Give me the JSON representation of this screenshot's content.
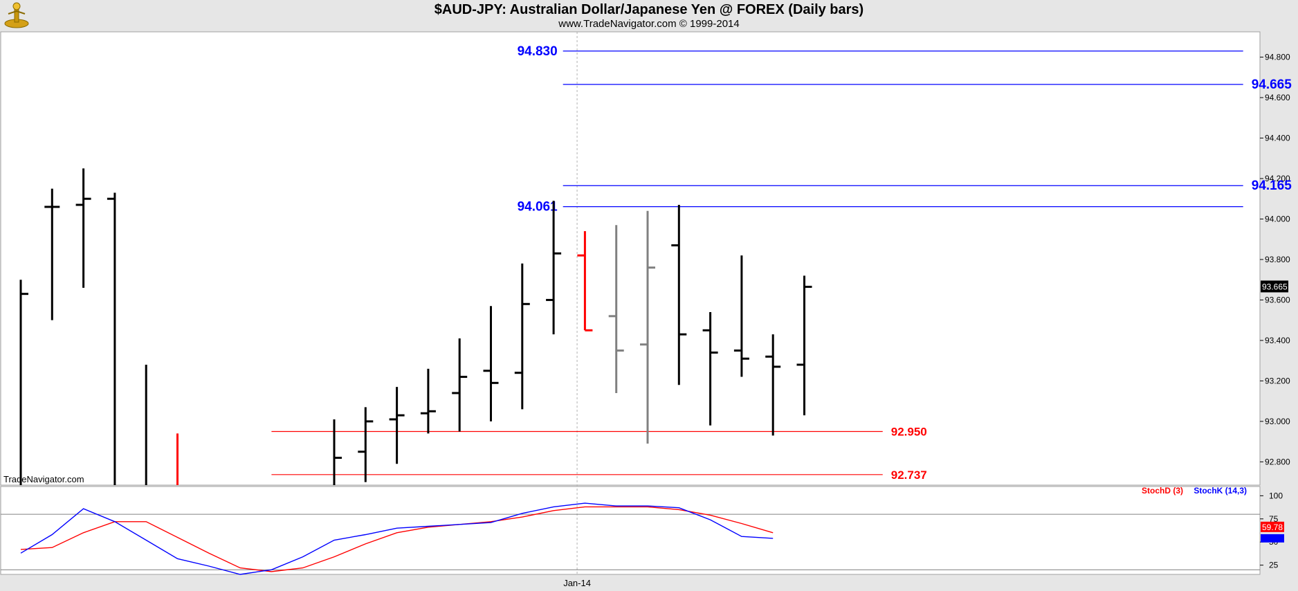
{
  "header": {
    "title": "$AUD-JPY:  Australian Dollar/Japanese Yen @ FOREX  (Daily bars)",
    "subtitle": "www.TradeNavigator.com © 1999-2014"
  },
  "watermark": "TradeNavigator.com",
  "last_price_label": "93.665",
  "colors": {
    "up_bar": "#000000",
    "down_bar": "#ff0000",
    "inside_bar": "#808080",
    "resistance": "#0000ff",
    "support": "#ff0000",
    "stoch_d": "#ff0000",
    "stoch_k": "#0000ff"
  },
  "chart_data": [
    {
      "type": "ohlc",
      "title": "$AUD-JPY:  Australian Dollar/Japanese Yen @ FOREX  (Daily bars)",
      "y_ticks": [
        "92.800",
        "93.000",
        "93.200",
        "93.400",
        "93.600",
        "93.800",
        "94.000",
        "94.200",
        "94.400",
        "94.600",
        "94.800"
      ],
      "ylim": [
        92.685,
        94.925
      ],
      "x_ticks": [
        {
          "label": "Jan-14",
          "index": 17.75
        }
      ],
      "bars": [
        {
          "o": null,
          "h": 93.7,
          "l": 92.6,
          "c": 93.63,
          "color": "up_bar"
        },
        {
          "o": 94.06,
          "h": 94.15,
          "l": 93.5,
          "c": 94.06,
          "color": "up_bar"
        },
        {
          "o": 94.07,
          "h": 94.25,
          "l": 93.66,
          "c": 94.1,
          "color": "up_bar"
        },
        {
          "o": 94.1,
          "h": 94.13,
          "l": 92.6,
          "c": null,
          "color": "up_bar"
        },
        {
          "o": null,
          "h": 93.28,
          "l": 92.6,
          "c": null,
          "color": "up_bar"
        },
        {
          "o": null,
          "h": 92.94,
          "l": 92.6,
          "c": null,
          "color": "down_bar"
        },
        null,
        null,
        null,
        null,
        {
          "o": null,
          "h": 93.01,
          "l": 92.6,
          "c": 92.82,
          "color": "up_bar"
        },
        {
          "o": 92.85,
          "h": 93.07,
          "l": 92.7,
          "c": 93.0,
          "color": "up_bar"
        },
        {
          "o": 93.01,
          "h": 93.17,
          "l": 92.79,
          "c": 93.03,
          "color": "up_bar"
        },
        {
          "o": 93.04,
          "h": 93.26,
          "l": 92.94,
          "c": 93.05,
          "color": "up_bar"
        },
        {
          "o": 93.14,
          "h": 93.41,
          "l": 92.95,
          "c": 93.22,
          "color": "up_bar"
        },
        {
          "o": 93.25,
          "h": 93.57,
          "l": 93.0,
          "c": 93.19,
          "color": "up_bar"
        },
        {
          "o": 93.24,
          "h": 93.78,
          "l": 93.06,
          "c": 93.58,
          "color": "up_bar"
        },
        {
          "o": 93.6,
          "h": 94.09,
          "l": 93.43,
          "c": 93.83,
          "color": "up_bar"
        },
        {
          "o": 93.82,
          "h": 93.94,
          "l": 93.45,
          "c": 93.45,
          "color": "down_bar"
        },
        {
          "o": 93.52,
          "h": 93.97,
          "l": 93.14,
          "c": 93.35,
          "color": "inside_bar"
        },
        {
          "o": 93.38,
          "h": 94.04,
          "l": 92.89,
          "c": 93.76,
          "color": "inside_bar"
        },
        {
          "o": 93.87,
          "h": 94.07,
          "l": 93.18,
          "c": 93.43,
          "color": "up_bar"
        },
        {
          "o": 93.45,
          "h": 93.54,
          "l": 92.98,
          "c": 93.34,
          "color": "up_bar"
        },
        {
          "o": 93.35,
          "h": 93.82,
          "l": 93.22,
          "c": 93.31,
          "color": "up_bar"
        },
        {
          "o": 93.32,
          "h": 93.43,
          "l": 92.93,
          "c": 93.27,
          "color": "up_bar"
        },
        {
          "o": 93.28,
          "h": 93.72,
          "l": 93.03,
          "c": 93.665,
          "color": "up_bar"
        }
      ],
      "levels": [
        {
          "value": 94.83,
          "label": "94.830",
          "color": "resistance",
          "from": 17.3,
          "to": 39.0,
          "label_side": "left"
        },
        {
          "value": 94.665,
          "label": "94.665",
          "color": "resistance",
          "from": 17.3,
          "to": 39.0,
          "label_side": "right"
        },
        {
          "value": 94.165,
          "label": "94.165",
          "color": "resistance",
          "from": 17.3,
          "to": 39.0,
          "label_side": "right"
        },
        {
          "value": 94.061,
          "label": "94.061",
          "color": "resistance",
          "from": 17.3,
          "to": 39.0,
          "label_side": "left"
        },
        {
          "value": 92.95,
          "label": "92.950",
          "color": "support",
          "from": 8.0,
          "to": 27.5,
          "label_side": "right"
        },
        {
          "value": 92.737,
          "label": "92.737",
          "color": "support",
          "from": 8.0,
          "to": 27.5,
          "label_side": "right"
        }
      ]
    },
    {
      "type": "line",
      "title": "",
      "legend": [
        "StochD (3)",
        "StochK (14,3)"
      ],
      "y_ticks": [
        "25",
        "50",
        "75",
        "100"
      ],
      "ylim": [
        15,
        110
      ],
      "last_value_label": "59.78",
      "series": [
        {
          "name": "StochD (3)",
          "color": "stoch_d",
          "values": [
            42,
            44,
            60,
            72,
            72,
            55,
            38,
            22,
            18,
            22,
            34,
            48,
            60,
            66,
            69,
            72,
            77,
            84,
            88,
            88,
            88,
            85,
            79,
            70,
            60
          ]
        },
        {
          "name": "StochK (14,3)",
          "color": "stoch_k",
          "values": [
            38,
            58,
            86,
            72,
            52,
            32,
            24,
            15,
            20,
            34,
            52,
            58,
            65,
            67,
            69,
            71,
            81,
            88,
            92,
            89,
            89,
            87,
            74,
            56,
            54
          ]
        }
      ]
    }
  ]
}
